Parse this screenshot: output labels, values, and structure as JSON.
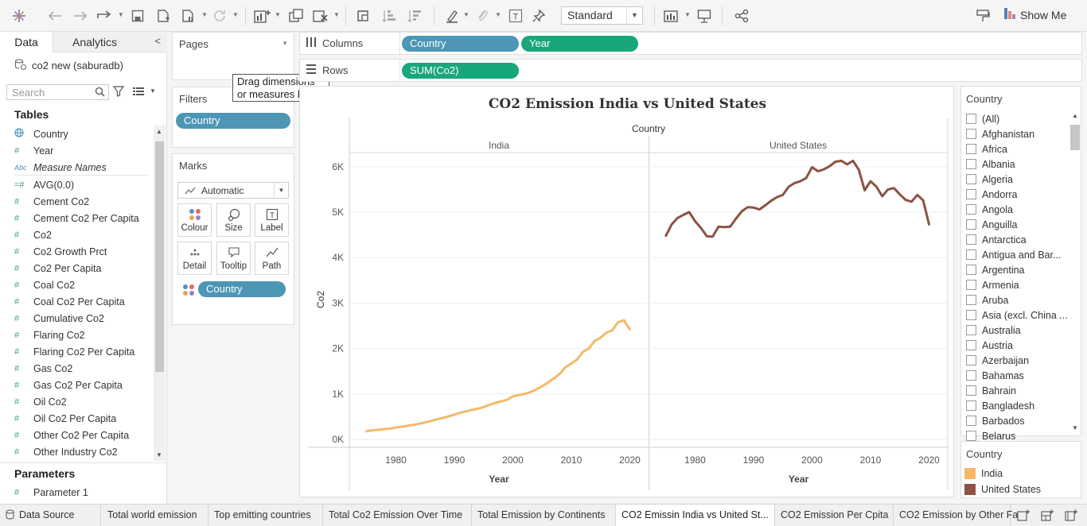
{
  "toolbar": {
    "view_size": "Standard",
    "show_me": "Show Me"
  },
  "left": {
    "data_tab": "Data",
    "analytics_tab": "Analytics",
    "datasource": "co2 new (saburadb)",
    "search_placeholder": "Search",
    "tables_title": "Tables",
    "fields": [
      {
        "icon": "globe",
        "name": "Country"
      },
      {
        "icon": "#",
        "name": "Year"
      },
      {
        "icon": "Abc",
        "name": "Measure Names"
      },
      {
        "icon": "=#",
        "name": "AVG(0.0)"
      },
      {
        "icon": "#",
        "name": "Cement Co2"
      },
      {
        "icon": "#",
        "name": "Cement Co2 Per Capita"
      },
      {
        "icon": "#",
        "name": "Co2"
      },
      {
        "icon": "#",
        "name": "Co2 Growth Prct"
      },
      {
        "icon": "#",
        "name": "Co2 Per Capita"
      },
      {
        "icon": "#",
        "name": "Coal Co2"
      },
      {
        "icon": "#",
        "name": "Coal Co2 Per Capita"
      },
      {
        "icon": "#",
        "name": "Cumulative Co2"
      },
      {
        "icon": "#",
        "name": "Flaring Co2"
      },
      {
        "icon": "#",
        "name": "Flaring Co2 Per Capita"
      },
      {
        "icon": "#",
        "name": "Gas Co2"
      },
      {
        "icon": "#",
        "name": "Gas Co2 Per Capita"
      },
      {
        "icon": "#",
        "name": "Oil Co2"
      },
      {
        "icon": "#",
        "name": "Oil Co2 Per Capita"
      },
      {
        "icon": "#",
        "name": "Other Co2 Per Capita"
      },
      {
        "icon": "#",
        "name": "Other Industry Co2"
      }
    ],
    "parameters_title": "Parameters",
    "parameters": [
      {
        "icon": "#",
        "name": "Parameter 1"
      }
    ]
  },
  "cards": {
    "pages_title": "Pages",
    "filters_title": "Filters",
    "filter_pill": "Country",
    "marks_title": "Marks",
    "mark_type": "Automatic",
    "mark_buttons": [
      "Colour",
      "Size",
      "Label",
      "Detail",
      "Tooltip",
      "Path"
    ],
    "color_pill": "Country",
    "drop_tooltip_line1": "Drag dimensions",
    "drop_tooltip_line2": "or measures here."
  },
  "shelves": {
    "columns_label": "Columns",
    "column_pills": [
      "Country",
      "Year"
    ],
    "rows_label": "Rows",
    "row_pills": [
      "SUM(Co2)"
    ]
  },
  "chart_data": {
    "type": "line",
    "title": "CO2 Emission India vs United States",
    "column_header": "Country",
    "panes": [
      "India",
      "United States"
    ],
    "xlabel": "Year",
    "ylabel": "Co2",
    "x_ticks": [
      1980,
      1990,
      2000,
      2010,
      2020
    ],
    "y_ticks": [
      "0K",
      "1K",
      "2K",
      "3K",
      "4K",
      "5K",
      "6K"
    ],
    "xlim": [
      1970,
      2022
    ],
    "ylim": [
      0,
      6300
    ],
    "series": [
      {
        "name": "India",
        "color": "#f5b86a",
        "x": [
          1975,
          1976,
          1977,
          1978,
          1979,
          1980,
          1981,
          1982,
          1983,
          1984,
          1985,
          1986,
          1987,
          1988,
          1989,
          1990,
          1991,
          1992,
          1993,
          1994,
          1995,
          1996,
          1997,
          1998,
          1999,
          2000,
          2001,
          2002,
          2003,
          2004,
          2005,
          2006,
          2007,
          2008,
          2009,
          2010,
          2011,
          2012,
          2013,
          2014,
          2015,
          2016,
          2017,
          2018,
          2019,
          2020
        ],
        "y": [
          180,
          200,
          215,
          225,
          240,
          260,
          280,
          300,
          320,
          345,
          375,
          405,
          440,
          470,
          505,
          545,
          585,
          615,
          650,
          675,
          710,
          760,
          805,
          835,
          870,
          945,
          975,
          1000,
          1040,
          1100,
          1170,
          1250,
          1340,
          1440,
          1590,
          1670,
          1760,
          1930,
          2000,
          2170,
          2240,
          2350,
          2400,
          2580,
          2620,
          2420
        ]
      },
      {
        "name": "United States",
        "color": "#8b5344",
        "x": [
          1975,
          1976,
          1977,
          1978,
          1979,
          1980,
          1981,
          1982,
          1983,
          1984,
          1985,
          1986,
          1987,
          1988,
          1989,
          1990,
          1991,
          1992,
          1993,
          1994,
          1995,
          1996,
          1997,
          1998,
          1999,
          2000,
          2001,
          2002,
          2003,
          2004,
          2005,
          2006,
          2007,
          2008,
          2009,
          2010,
          2011,
          2012,
          2013,
          2014,
          2015,
          2016,
          2017,
          2018,
          2019,
          2020
        ],
        "y": [
          4480,
          4730,
          4870,
          4940,
          5000,
          4800,
          4650,
          4470,
          4460,
          4680,
          4670,
          4680,
          4860,
          5020,
          5110,
          5100,
          5060,
          5150,
          5250,
          5330,
          5380,
          5560,
          5640,
          5680,
          5750,
          5990,
          5900,
          5940,
          6010,
          6110,
          6130,
          6050,
          6130,
          5930,
          5480,
          5680,
          5560,
          5350,
          5500,
          5530,
          5390,
          5270,
          5230,
          5380,
          5260,
          4730
        ]
      }
    ]
  },
  "right": {
    "filter_title": "Country",
    "filter_items": [
      "(All)",
      "Afghanistan",
      "Africa",
      "Albania",
      "Algeria",
      "Andorra",
      "Angola",
      "Anguilla",
      "Antarctica",
      "Antigua and Bar...",
      "Argentina",
      "Armenia",
      "Aruba",
      "Asia (excl. China ...",
      "Australia",
      "Austria",
      "Azerbaijan",
      "Bahamas",
      "Bahrain",
      "Bangladesh",
      "Barbados",
      "Belarus"
    ],
    "legend_title": "Country",
    "legend": [
      {
        "name": "India",
        "color": "#f5b86a"
      },
      {
        "name": "United States",
        "color": "#8b5344"
      }
    ]
  },
  "sheet_tabs": {
    "datasource": "Data Source",
    "tabs": [
      "Total world emission",
      "Top emitting countries",
      "Total Co2 Emission Over Time",
      "Total Emission by Continents",
      "CO2 Emissin India vs United St...",
      "CO2 Emission Per Cpita",
      "CO2 Emission by Other Fa"
    ],
    "active_index": 4
  }
}
